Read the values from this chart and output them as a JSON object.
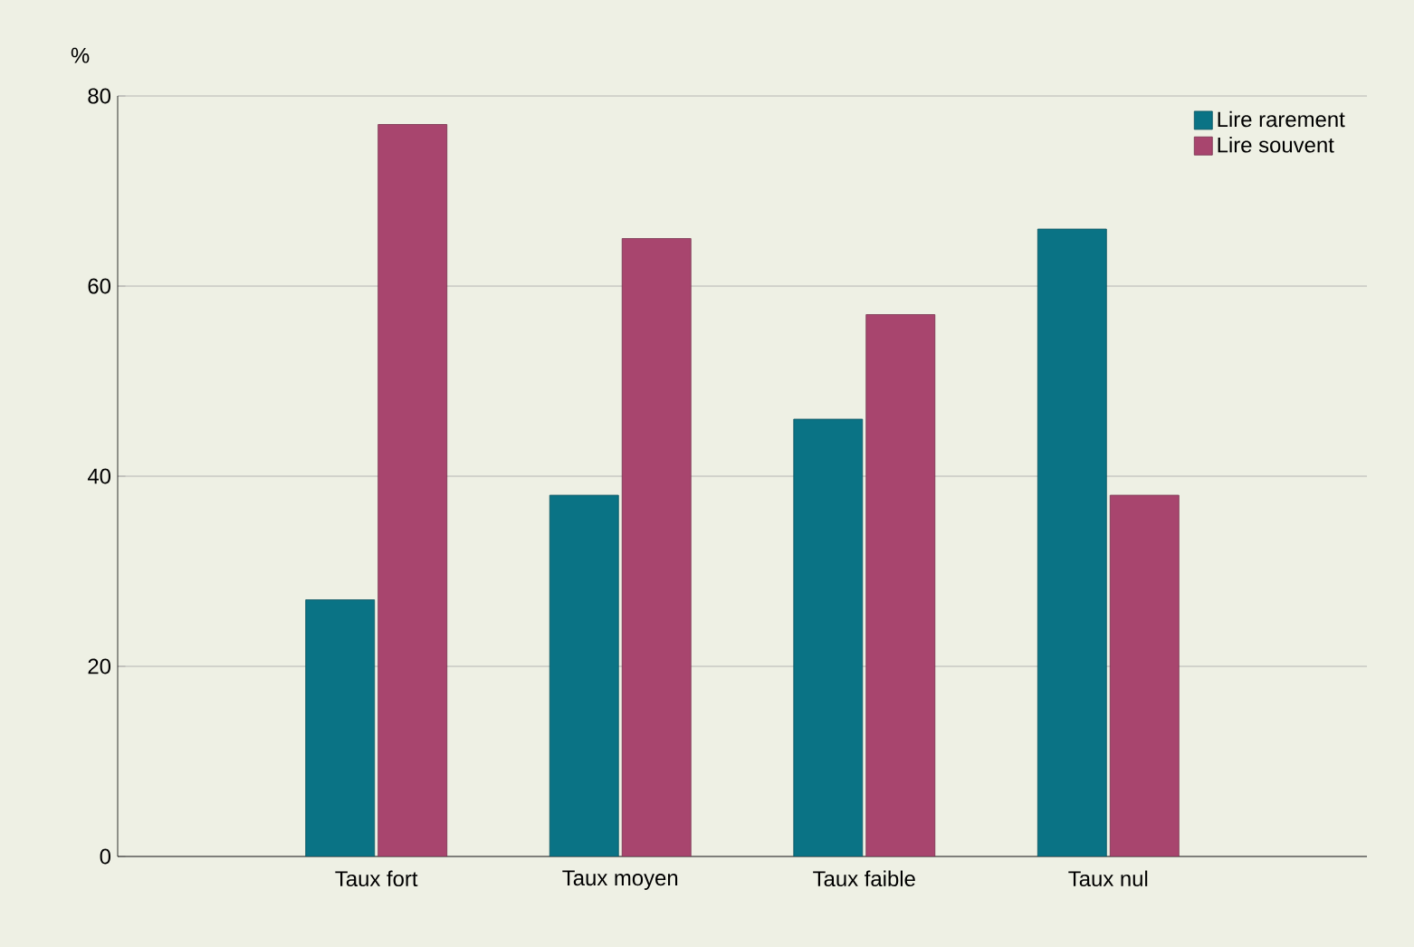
{
  "chart_data": {
    "type": "bar",
    "ylabel": "%",
    "categories": [
      "Taux fort",
      "Taux moyen",
      "Taux faible",
      "Taux nul"
    ],
    "series": [
      {
        "name": "Lire rarement",
        "color": "#0a7385",
        "values": [
          27,
          38,
          46,
          66
        ]
      },
      {
        "name": "Lire souvent",
        "color": "#a8456e",
        "values": [
          77,
          65,
          57,
          38
        ]
      }
    ],
    "ylim": [
      0,
      80
    ],
    "yticks": [
      0,
      20,
      40,
      60,
      80
    ],
    "grid": "y",
    "legend": "top right"
  }
}
